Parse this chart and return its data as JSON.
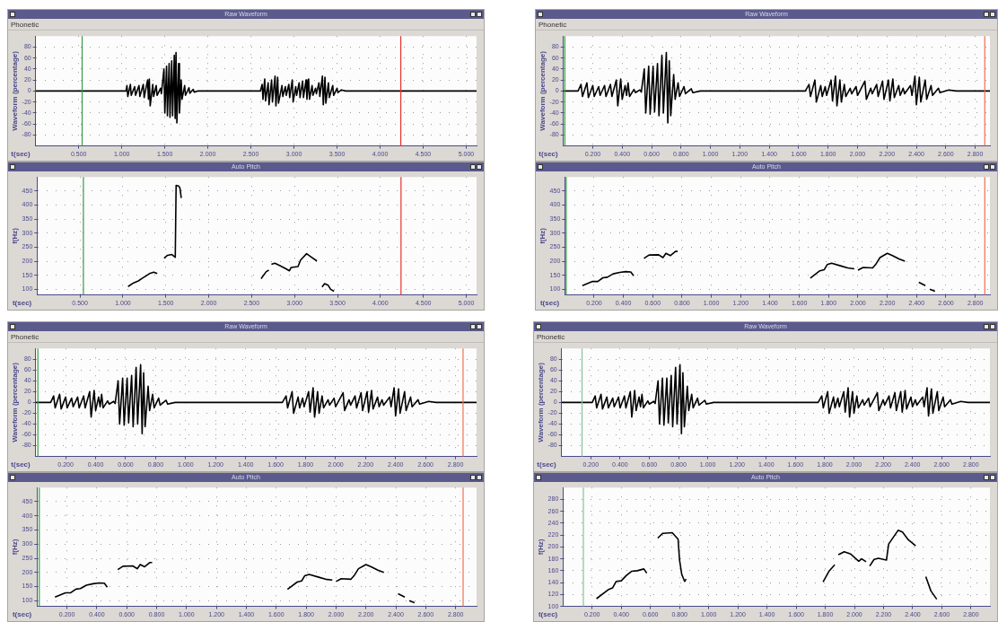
{
  "chart_data": [
    {
      "type": "line",
      "title": "Raw Waveform",
      "annotations": [
        "Phonetic"
      ],
      "xlabel": "t(sec)",
      "ylabel": "Waveform (percentage)",
      "color": "#000000",
      "grid": true,
      "xlim": [
        0,
        5.12
      ],
      "ylim": [
        -100,
        100
      ],
      "xticks": [
        {
          "value": 0.5,
          "label": "0.500"
        },
        {
          "value": 1,
          "label": "1.000"
        },
        {
          "value": 1.5,
          "label": "1.500"
        },
        {
          "value": 2,
          "label": "2.000"
        },
        {
          "value": 2.5,
          "label": "2.500"
        },
        {
          "value": 3,
          "label": "3.000"
        },
        {
          "value": 3.5,
          "label": "3.500"
        },
        {
          "value": 4,
          "label": "4.000"
        },
        {
          "value": 4.5,
          "label": "4.500"
        },
        {
          "value": 5,
          "label": "5.000"
        }
      ],
      "yticks": [
        -80,
        -60,
        -40,
        -20,
        0,
        20,
        40,
        60,
        80
      ],
      "ref_lines": [
        {
          "axis": "x",
          "value": 0.54,
          "color": "#3a9a4a"
        },
        {
          "axis": "x",
          "value": 4.24,
          "color": "#e8302a"
        }
      ],
      "x": [
        0,
        1.05,
        1.06,
        1.07,
        1.1,
        1.11,
        1.15,
        1.16,
        1.2,
        1.21,
        1.25,
        1.26,
        1.3,
        1.31,
        1.32,
        1.33,
        1.36,
        1.37,
        1.4,
        1.41,
        1.45,
        1.46,
        1.49,
        1.5,
        1.52,
        1.53,
        1.55,
        1.56,
        1.58,
        1.59,
        1.61,
        1.62,
        1.63,
        1.64,
        1.66,
        1.67,
        1.69,
        1.7,
        1.73,
        1.74,
        1.78,
        1.79,
        1.83,
        1.84,
        1.88,
        2.61,
        2.63,
        2.64,
        2.66,
        2.67,
        2.7,
        2.71,
        2.74,
        2.75,
        2.78,
        2.79,
        2.81,
        2.82,
        2.86,
        2.87,
        2.9,
        2.91,
        2.94,
        2.95,
        2.98,
        2.99,
        3.02,
        3.03,
        3.06,
        3.07,
        3.1,
        3.11,
        3.14,
        3.15,
        3.17,
        3.18,
        3.21,
        3.22,
        3.25,
        3.26,
        3.29,
        3.3,
        3.33,
        3.34,
        3.36,
        3.37,
        3.4,
        3.41,
        3.45,
        3.46,
        3.5,
        3.51,
        3.55,
        3.6,
        5.12
      ],
      "values": [
        0,
        0,
        10,
        -10,
        12,
        -8,
        8,
        -8,
        10,
        -10,
        12,
        -12,
        20,
        -15,
        22,
        -27,
        12,
        -10,
        10,
        -8,
        5,
        -5,
        40,
        -40,
        45,
        -45,
        50,
        -48,
        55,
        -45,
        65,
        -50,
        70,
        -58,
        50,
        -40,
        20,
        -15,
        10,
        -8,
        6,
        -4,
        3,
        -2,
        0,
        0,
        12,
        -15,
        22,
        -18,
        15,
        -25,
        20,
        -20,
        27,
        -27,
        25,
        -22,
        10,
        -10,
        8,
        -8,
        12,
        -12,
        20,
        -20,
        8,
        -8,
        15,
        -12,
        18,
        -12,
        20,
        -15,
        22,
        -15,
        10,
        -8,
        5,
        -5,
        15,
        -10,
        27,
        -25,
        25,
        -22,
        15,
        -12,
        10,
        -8,
        5,
        -3,
        2,
        0,
        0
      ]
    },
    {
      "type": "line",
      "title": "Auto Pitch",
      "xlabel": "t(sec)",
      "ylabel": "f(Hz)",
      "color": "#000000",
      "grid": true,
      "xlim": [
        0,
        5.12
      ],
      "ylim": [
        80,
        500
      ],
      "xticks": [
        {
          "value": 0.5,
          "label": "0.500"
        },
        {
          "value": 1,
          "label": "1.000"
        },
        {
          "value": 1.5,
          "label": "1.500"
        },
        {
          "value": 2,
          "label": "2.000"
        },
        {
          "value": 2.5,
          "label": "2.500"
        },
        {
          "value": 3,
          "label": "3.000"
        },
        {
          "value": 3.5,
          "label": "3.500"
        },
        {
          "value": 4,
          "label": "4.000"
        },
        {
          "value": 4.5,
          "label": "4.500"
        },
        {
          "value": 5,
          "label": "5.000"
        }
      ],
      "yticks": [
        100,
        150,
        200,
        250,
        300,
        350,
        400,
        450
      ],
      "ref_lines": [
        {
          "axis": "x",
          "value": 0.54,
          "color": "#3a9a4a"
        },
        {
          "axis": "x",
          "value": 4.24,
          "color": "#e8302a"
        }
      ],
      "x": [
        1.06,
        1.125,
        1.18,
        1.22,
        1.27,
        1.31,
        1.36,
        1.4,
        1.44,
        1.48,
        1.52,
        1.57,
        1.61,
        1.62,
        1.65,
        1.665,
        1.68,
        2.1,
        2.61,
        2.67,
        2.7,
        2.715,
        2.73,
        2.77,
        2.83,
        2.9,
        2.94,
        2.96,
        3.04,
        3.07,
        3.14,
        3.19,
        3.26,
        3.29,
        3.32,
        3.35,
        3.39,
        3.42,
        3.46
      ],
      "values": [
        110,
        123,
        130,
        138,
        148,
        156,
        161,
        156,
        null,
        211,
        221,
        224,
        214,
        470,
        468,
        460,
        425,
        null,
        138,
        163,
        168,
        null,
        189,
        193,
        184,
        173,
        166,
        178,
        181,
        204,
        227,
        216,
        201,
        null,
        108,
        120,
        115,
        100,
        93
      ]
    },
    {
      "type": "line",
      "title": "Raw Waveform",
      "annotations": [
        "Phonetic"
      ],
      "xlabel": "t(sec)",
      "ylabel": "Waveform (percentage)",
      "color": "#000000",
      "grid": true,
      "xlim": [
        0,
        2.9
      ],
      "ylim": [
        -100,
        100
      ],
      "xticks": [
        {
          "value": 0.2,
          "label": "0.200"
        },
        {
          "value": 0.4,
          "label": "0.400"
        },
        {
          "value": 0.6,
          "label": "0.600"
        },
        {
          "value": 0.8,
          "label": "0.800"
        },
        {
          "value": 1,
          "label": "1.000"
        },
        {
          "value": 1.2,
          "label": "1.200"
        },
        {
          "value": 1.4,
          "label": "1.400"
        },
        {
          "value": 1.6,
          "label": "1.600"
        },
        {
          "value": 1.8,
          "label": "1.800"
        },
        {
          "value": 2,
          "label": "2.000"
        },
        {
          "value": 2.2,
          "label": "2.200"
        },
        {
          "value": 2.4,
          "label": "2.400"
        },
        {
          "value": 2.6,
          "label": "2.600"
        },
        {
          "value": 2.8,
          "label": "2.800"
        }
      ],
      "yticks": [
        -80,
        -60,
        -40,
        -20,
        0,
        20,
        40,
        60,
        80
      ],
      "ref_lines": [
        {
          "axis": "x",
          "value": 0.01,
          "color": "#3a9a4a"
        },
        {
          "axis": "x",
          "value": 2.865,
          "color": "#f07050"
        }
      ],
      "x": [
        0,
        0.1,
        0.12,
        0.13,
        0.16,
        0.17,
        0.2,
        0.21,
        0.24,
        0.25,
        0.28,
        0.29,
        0.32,
        0.33,
        0.36,
        0.37,
        0.39,
        0.4,
        0.42,
        0.43,
        0.44,
        0.45,
        0.48,
        0.49,
        0.52,
        0.53,
        0.55,
        0.56,
        0.58,
        0.59,
        0.61,
        0.62,
        0.64,
        0.65,
        0.67,
        0.68,
        0.7,
        0.71,
        0.72,
        0.73,
        0.75,
        0.76,
        0.78,
        0.79,
        0.82,
        0.83,
        0.87,
        0.88,
        0.93,
        1.645,
        1.67,
        1.68,
        1.71,
        1.72,
        1.75,
        1.76,
        1.78,
        1.79,
        1.82,
        1.83,
        1.85,
        1.86,
        1.88,
        1.89,
        1.91,
        1.92,
        1.95,
        1.96,
        1.99,
        2.0,
        2.05,
        2.06,
        2.09,
        2.1,
        2.13,
        2.14,
        2.17,
        2.18,
        2.21,
        2.22,
        2.24,
        2.25,
        2.28,
        2.29,
        2.31,
        2.32,
        2.36,
        2.37,
        2.39,
        2.4,
        2.42,
        2.43,
        2.46,
        2.47,
        2.5,
        2.51,
        2.55,
        2.56,
        2.62,
        2.67,
        2.9
      ],
      "values": [
        0,
        0,
        12,
        -10,
        15,
        -12,
        10,
        -10,
        8,
        -8,
        10,
        -10,
        12,
        -10,
        20,
        -27,
        22,
        -15,
        10,
        -8,
        15,
        -10,
        3,
        -3,
        2,
        -2,
        40,
        -40,
        45,
        -42,
        45,
        -38,
        50,
        -45,
        65,
        -40,
        70,
        -58,
        55,
        -45,
        30,
        -15,
        15,
        -10,
        8,
        -5,
        4,
        -3,
        0,
        0,
        12,
        -10,
        20,
        -20,
        10,
        -10,
        8,
        -8,
        20,
        -18,
        27,
        -27,
        20,
        -20,
        12,
        -10,
        5,
        -5,
        8,
        -8,
        18,
        -15,
        5,
        -5,
        12,
        -10,
        18,
        -15,
        20,
        -18,
        22,
        -12,
        10,
        -8,
        5,
        -5,
        10,
        -8,
        27,
        -25,
        25,
        -20,
        20,
        -15,
        10,
        -8,
        5,
        -3,
        2,
        0,
        0
      ]
    },
    {
      "type": "line",
      "title": "Auto Pitch",
      "xlabel": "t(sec)",
      "ylabel": "f(Hz)",
      "color": "#000000",
      "grid": true,
      "xlim": [
        0,
        2.9
      ],
      "ylim": [
        80,
        500
      ],
      "xticks": [
        {
          "value": 0.2,
          "label": "0.200"
        },
        {
          "value": 0.4,
          "label": "0.400"
        },
        {
          "value": 0.6,
          "label": "0.600"
        },
        {
          "value": 0.8,
          "label": "0.800"
        },
        {
          "value": 1,
          "label": "1.000"
        },
        {
          "value": 1.2,
          "label": "1.200"
        },
        {
          "value": 1.4,
          "label": "1.400"
        },
        {
          "value": 1.6,
          "label": "1.600"
        },
        {
          "value": 1.8,
          "label": "1.800"
        },
        {
          "value": 2,
          "label": "2.000"
        },
        {
          "value": 2.2,
          "label": "2.200"
        },
        {
          "value": 2.4,
          "label": "2.400"
        },
        {
          "value": 2.6,
          "label": "2.600"
        },
        {
          "value": 2.8,
          "label": "2.800"
        }
      ],
      "yticks": [
        100,
        150,
        200,
        250,
        300,
        350,
        400,
        450
      ],
      "ref_lines": [
        {
          "axis": "x",
          "value": 0.01,
          "color": "#3a9a4a"
        },
        {
          "axis": "x",
          "value": 2.865,
          "color": "#f07050"
        }
      ],
      "x": [
        0.12,
        0.19,
        0.225,
        0.26,
        0.29,
        0.33,
        0.375,
        0.415,
        0.45,
        0.47,
        0.505,
        0.54,
        0.575,
        0.64,
        0.67,
        0.69,
        0.72,
        0.755,
        0.77,
        1.2,
        1.675,
        1.74,
        1.77,
        1.79,
        1.82,
        1.885,
        1.93,
        1.975,
        1.99,
        2.0,
        2.035,
        2.1,
        2.12,
        2.15,
        2.2,
        2.235,
        2.28,
        2.32,
        2.37,
        2.415,
        2.46,
        2.475,
        2.49,
        2.525
      ],
      "values": [
        113,
        128,
        128,
        141,
        143,
        155,
        160,
        163,
        162,
        148,
        null,
        210,
        222,
        223,
        213,
        228,
        220,
        235,
        235,
        null,
        140,
        166,
        170,
        188,
        193,
        183,
        176,
        173,
        null,
        168,
        178,
        176,
        188,
        213,
        228,
        220,
        208,
        200,
        null,
        125,
        113,
        null,
        100,
        93
      ]
    },
    {
      "type": "line",
      "title": "Raw Waveform",
      "annotations": [
        "Phonetic"
      ],
      "xlabel": "t(sec)",
      "ylabel": "Waveform (percentage)",
      "color": "#000000",
      "grid": true,
      "xlim": [
        0,
        2.94
      ],
      "ylim": [
        -100,
        100
      ],
      "xticks": [
        {
          "value": 0.2,
          "label": "0.200"
        },
        {
          "value": 0.4,
          "label": "0.400"
        },
        {
          "value": 0.6,
          "label": "0.600"
        },
        {
          "value": 0.8,
          "label": "0.800"
        },
        {
          "value": 1,
          "label": "1.000"
        },
        {
          "value": 1.2,
          "label": "1.200"
        },
        {
          "value": 1.4,
          "label": "1.400"
        },
        {
          "value": 1.6,
          "label": "1.600"
        },
        {
          "value": 1.8,
          "label": "1.800"
        },
        {
          "value": 2,
          "label": "2.000"
        },
        {
          "value": 2.2,
          "label": "2.200"
        },
        {
          "value": 2.4,
          "label": "2.400"
        },
        {
          "value": 2.6,
          "label": "2.600"
        },
        {
          "value": 2.8,
          "label": "2.800"
        }
      ],
      "yticks": [
        -80,
        -60,
        -40,
        -20,
        0,
        20,
        40,
        60,
        80
      ],
      "ref_lines": [
        {
          "axis": "x",
          "value": 0.015,
          "color": "#3a9a4a"
        },
        {
          "axis": "x",
          "value": 2.85,
          "color": "#f07050"
        }
      ],
      "x": [
        0,
        0.1,
        0.12,
        0.13,
        0.16,
        0.17,
        0.2,
        0.21,
        0.24,
        0.25,
        0.28,
        0.29,
        0.32,
        0.33,
        0.36,
        0.37,
        0.39,
        0.4,
        0.42,
        0.43,
        0.44,
        0.45,
        0.48,
        0.49,
        0.52,
        0.53,
        0.55,
        0.56,
        0.58,
        0.59,
        0.61,
        0.62,
        0.64,
        0.65,
        0.67,
        0.68,
        0.7,
        0.71,
        0.72,
        0.73,
        0.75,
        0.76,
        0.78,
        0.79,
        0.82,
        0.83,
        0.87,
        0.88,
        0.93,
        1.645,
        1.67,
        1.68,
        1.71,
        1.72,
        1.75,
        1.76,
        1.78,
        1.79,
        1.82,
        1.83,
        1.85,
        1.86,
        1.88,
        1.89,
        1.91,
        1.92,
        1.95,
        1.96,
        1.99,
        2.0,
        2.05,
        2.06,
        2.09,
        2.1,
        2.13,
        2.14,
        2.17,
        2.18,
        2.21,
        2.22,
        2.24,
        2.25,
        2.28,
        2.29,
        2.31,
        2.32,
        2.36,
        2.37,
        2.39,
        2.4,
        2.42,
        2.43,
        2.46,
        2.47,
        2.5,
        2.51,
        2.55,
        2.56,
        2.62,
        2.67,
        2.94
      ],
      "values": [
        0,
        0,
        12,
        -10,
        15,
        -12,
        10,
        -10,
        8,
        -8,
        10,
        -10,
        12,
        -10,
        20,
        -27,
        22,
        -15,
        10,
        -8,
        15,
        -10,
        3,
        -3,
        2,
        -2,
        40,
        -40,
        45,
        -42,
        45,
        -38,
        50,
        -45,
        65,
        -40,
        70,
        -58,
        55,
        -45,
        30,
        -15,
        15,
        -10,
        8,
        -5,
        4,
        -3,
        0,
        0,
        12,
        -10,
        20,
        -20,
        10,
        -10,
        8,
        -8,
        20,
        -18,
        27,
        -27,
        20,
        -20,
        12,
        -10,
        5,
        -5,
        8,
        -8,
        18,
        -15,
        5,
        -5,
        12,
        -10,
        18,
        -15,
        20,
        -18,
        22,
        -12,
        10,
        -8,
        5,
        -5,
        10,
        -8,
        27,
        -25,
        25,
        -20,
        20,
        -15,
        10,
        -8,
        5,
        -3,
        2,
        0,
        0
      ]
    },
    {
      "type": "line",
      "title": "Auto Pitch",
      "xlabel": "t(sec)",
      "ylabel": "f(Hz)",
      "color": "#000000",
      "grid": true,
      "xlim": [
        0,
        2.94
      ],
      "ylim": [
        80,
        500
      ],
      "xticks": [
        {
          "value": 0.2,
          "label": "0.200"
        },
        {
          "value": 0.4,
          "label": "0.400"
        },
        {
          "value": 0.6,
          "label": "0.600"
        },
        {
          "value": 0.8,
          "label": "0.800"
        },
        {
          "value": 1,
          "label": "1.000"
        },
        {
          "value": 1.2,
          "label": "1.200"
        },
        {
          "value": 1.4,
          "label": "1.400"
        },
        {
          "value": 1.6,
          "label": "1.600"
        },
        {
          "value": 1.8,
          "label": "1.800"
        },
        {
          "value": 2,
          "label": "2.000"
        },
        {
          "value": 2.2,
          "label": "2.200"
        },
        {
          "value": 2.4,
          "label": "2.400"
        },
        {
          "value": 2.6,
          "label": "2.600"
        },
        {
          "value": 2.8,
          "label": "2.800"
        }
      ],
      "yticks": [
        100,
        150,
        200,
        250,
        300,
        350,
        400,
        450
      ],
      "ref_lines": [
        {
          "axis": "x",
          "value": 0.015,
          "color": "#3a9a4a"
        },
        {
          "axis": "x",
          "value": 2.85,
          "color": "#f07050"
        }
      ],
      "x": [
        0.12,
        0.19,
        0.225,
        0.26,
        0.29,
        0.33,
        0.375,
        0.415,
        0.45,
        0.47,
        0.505,
        0.54,
        0.575,
        0.64,
        0.67,
        0.69,
        0.72,
        0.755,
        0.77,
        1.2,
        1.675,
        1.74,
        1.77,
        1.79,
        1.82,
        1.885,
        1.93,
        1.975,
        1.99,
        2.0,
        2.035,
        2.1,
        2.12,
        2.15,
        2.2,
        2.235,
        2.28,
        2.32,
        2.37,
        2.415,
        2.46,
        2.475,
        2.49,
        2.525
      ],
      "values": [
        113,
        128,
        128,
        141,
        143,
        155,
        160,
        163,
        162,
        148,
        null,
        210,
        222,
        223,
        213,
        228,
        220,
        235,
        235,
        null,
        140,
        166,
        170,
        188,
        193,
        183,
        176,
        173,
        null,
        168,
        178,
        176,
        188,
        213,
        228,
        220,
        208,
        200,
        null,
        125,
        113,
        null,
        100,
        93
      ]
    },
    {
      "type": "line",
      "title": "Raw Waveform",
      "annotations": [
        "Phonetic"
      ],
      "xlabel": "t(sec)",
      "ylabel": "Waveform (percentage)",
      "color": "#000000",
      "grid": true,
      "xlim": [
        0,
        2.93
      ],
      "ylim": [
        -100,
        100
      ],
      "xticks": [
        {
          "value": 0.2,
          "label": "0.200"
        },
        {
          "value": 0.4,
          "label": "0.400"
        },
        {
          "value": 0.6,
          "label": "0.600"
        },
        {
          "value": 0.8,
          "label": "0.800"
        },
        {
          "value": 1,
          "label": "1.000"
        },
        {
          "value": 1.2,
          "label": "1.200"
        },
        {
          "value": 1.4,
          "label": "1.400"
        },
        {
          "value": 1.6,
          "label": "1.600"
        },
        {
          "value": 1.8,
          "label": "1.800"
        },
        {
          "value": 2,
          "label": "2.000"
        },
        {
          "value": 2.2,
          "label": "2.200"
        },
        {
          "value": 2.4,
          "label": "2.400"
        },
        {
          "value": 2.6,
          "label": "2.600"
        },
        {
          "value": 2.8,
          "label": "2.800"
        }
      ],
      "yticks": [
        -80,
        -60,
        -40,
        -20,
        0,
        20,
        40,
        60,
        80
      ],
      "ref_lines": [
        {
          "axis": "x",
          "value": 0.14,
          "color": "#8ac09a"
        }
      ],
      "x": [
        0,
        0.21,
        0.23,
        0.24,
        0.27,
        0.28,
        0.31,
        0.32,
        0.35,
        0.36,
        0.39,
        0.4,
        0.43,
        0.44,
        0.47,
        0.48,
        0.5,
        0.51,
        0.53,
        0.54,
        0.55,
        0.56,
        0.59,
        0.6,
        0.63,
        0.64,
        0.66,
        0.67,
        0.69,
        0.7,
        0.72,
        0.73,
        0.75,
        0.76,
        0.78,
        0.79,
        0.81,
        0.82,
        0.83,
        0.84,
        0.86,
        0.87,
        0.89,
        0.9,
        0.93,
        0.94,
        0.98,
        0.99,
        1.04,
        1.755,
        1.78,
        1.79,
        1.82,
        1.83,
        1.86,
        1.87,
        1.89,
        1.9,
        1.93,
        1.94,
        1.96,
        1.97,
        1.99,
        2.0,
        2.02,
        2.03,
        2.06,
        2.07,
        2.1,
        2.11,
        2.16,
        2.17,
        2.2,
        2.21,
        2.24,
        2.25,
        2.28,
        2.29,
        2.32,
        2.33,
        2.35,
        2.36,
        2.39,
        2.4,
        2.42,
        2.43,
        2.47,
        2.48,
        2.5,
        2.51,
        2.53,
        2.54,
        2.57,
        2.58,
        2.61,
        2.62,
        2.66,
        2.67,
        2.73,
        2.78,
        2.93
      ],
      "values": [
        0,
        0,
        12,
        -10,
        15,
        -12,
        10,
        -10,
        8,
        -8,
        10,
        -10,
        12,
        -10,
        20,
        -27,
        22,
        -15,
        10,
        -8,
        15,
        -10,
        3,
        -3,
        2,
        -2,
        40,
        -40,
        45,
        -42,
        45,
        -38,
        50,
        -45,
        65,
        -40,
        70,
        -58,
        55,
        -45,
        30,
        -15,
        15,
        -10,
        8,
        -5,
        4,
        -3,
        0,
        0,
        12,
        -10,
        20,
        -20,
        10,
        -10,
        8,
        -8,
        20,
        -18,
        27,
        -27,
        20,
        -20,
        12,
        -10,
        5,
        -5,
        8,
        -8,
        18,
        -15,
        5,
        -5,
        12,
        -10,
        18,
        -15,
        20,
        -18,
        22,
        -12,
        10,
        -8,
        5,
        -5,
        10,
        -8,
        27,
        -25,
        25,
        -20,
        20,
        -15,
        10,
        -8,
        5,
        -3,
        2,
        0,
        0
      ]
    },
    {
      "type": "line",
      "title": "Auto Pitch",
      "xlabel": "t(sec)",
      "ylabel": "f(Hz)",
      "color": "#000000",
      "grid": true,
      "xlim": [
        0,
        2.93
      ],
      "ylim": [
        100,
        300
      ],
      "xticks": [
        {
          "value": 0.2,
          "label": "0.200"
        },
        {
          "value": 0.4,
          "label": "0.400"
        },
        {
          "value": 0.6,
          "label": "0.600"
        },
        {
          "value": 0.8,
          "label": "0.800"
        },
        {
          "value": 1,
          "label": "1.000"
        },
        {
          "value": 1.2,
          "label": "1.200"
        },
        {
          "value": 1.4,
          "label": "1.400"
        },
        {
          "value": 1.6,
          "label": "1.600"
        },
        {
          "value": 1.8,
          "label": "1.800"
        },
        {
          "value": 2,
          "label": "2.000"
        },
        {
          "value": 2.2,
          "label": "2.200"
        },
        {
          "value": 2.4,
          "label": "2.400"
        },
        {
          "value": 2.6,
          "label": "2.600"
        },
        {
          "value": 2.8,
          "label": "2.800"
        }
      ],
      "yticks": [
        100,
        120,
        140,
        160,
        180,
        200,
        220,
        240,
        260,
        280
      ],
      "ref_lines": [
        {
          "axis": "x",
          "value": 0.14,
          "color": "#8ac09a"
        }
      ],
      "x": [
        0.23,
        0.31,
        0.34,
        0.365,
        0.4,
        0.435,
        0.47,
        0.51,
        0.555,
        0.575,
        0.61,
        0.65,
        0.685,
        0.75,
        0.79,
        0.8,
        0.815,
        0.835,
        0.845,
        1.3,
        1.785,
        1.825,
        1.865,
        1.88,
        1.89,
        1.93,
        1.975,
        2.03,
        2.05,
        2.08,
        2.09,
        2.105,
        2.135,
        2.165,
        2.22,
        2.235,
        2.3,
        2.33,
        2.37,
        2.42,
        2.455,
        2.49,
        2.525,
        2.565
      ],
      "values": [
        113,
        128,
        131,
        142,
        143,
        152,
        159,
        160,
        163,
        156,
        null,
        215,
        223,
        224,
        213,
        178,
        154,
        142,
        146,
        null,
        141,
        159,
        170,
        null,
        187,
        192,
        188,
        176,
        180,
        175,
        null,
        168,
        179,
        181,
        178,
        205,
        228,
        225,
        212,
        202,
        null,
        150,
        126,
        112
      ]
    }
  ]
}
